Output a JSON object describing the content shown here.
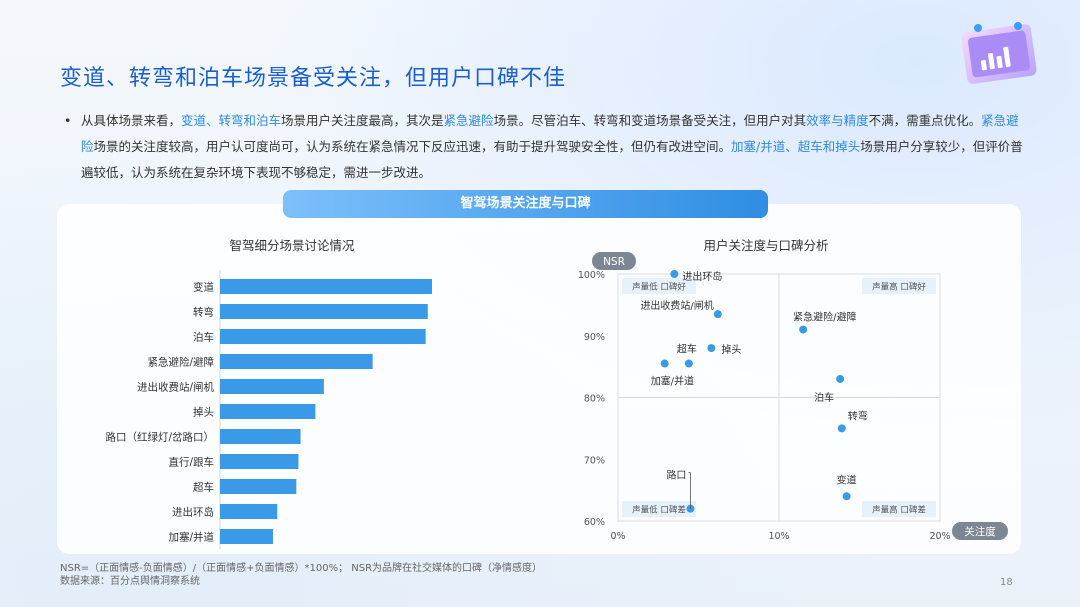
{
  "page": {
    "title": "变道、转弯和泊车场景备受关注，但用户口碑不佳",
    "panel_title": "智驾场景关注度与口碑",
    "footnote_1": "NSR=（正面情感-负面情感）/（正面情感+负面情感）*100%；  NSR为品牌在社交媒体的口碑（净情感度）",
    "footnote_2": "数据来源：百分点舆情洞察系统",
    "page_number": "18"
  },
  "bullet": {
    "p1": "从具体场景来看，",
    "h1": "变道、转弯和泊车",
    "p2": "场景用户关注度最高，其次是",
    "h2": "紧急避险",
    "p3": "场景。尽管泊车、转弯和变道场景备受关注，但用户对其",
    "h3": "效率与精度",
    "p4": "不满，需重点优化。",
    "h4": "紧急避险",
    "p5": "场景的关注度较高，用户认可度尚可，认为系统在紧急情况下反应迅速，有助于提升驾驶安全性，但仍有改进空间。",
    "h5": "加塞/并道、超车和掉头",
    "p6": "场景用户分享较少，但评价普遍较低，认为系统在复杂环境下表现不够稳定，需进一步改进。"
  },
  "colors": {
    "accent": "#2f8be3",
    "bar": "#3a9ae8",
    "title": "#1a5fd0"
  },
  "chart_data": [
    {
      "type": "bar",
      "orientation": "horizontal",
      "title": "智驾细分场景讨论情况",
      "categories": [
        "变道",
        "转弯",
        "泊车",
        "紧急避险/避障",
        "进出收费站/闸机",
        "掉头",
        "路口（红绿灯/岔路口）",
        "直行/跟车",
        "超车",
        "进出环岛",
        "加塞/并道"
      ],
      "values": [
        100,
        98,
        97,
        72,
        49,
        45,
        38,
        37,
        36,
        27,
        25
      ]
    },
    {
      "type": "scatter",
      "title": "用户关注度与口碑分析",
      "xlabel": "关注度",
      "ylabel": "NSR",
      "xlim": [
        0,
        20
      ],
      "ylim": [
        60,
        100
      ],
      "x_ticks": [
        "0%",
        "10%",
        "20%"
      ],
      "y_ticks": [
        "100%",
        "90%",
        "80%",
        "70%",
        "60%"
      ],
      "quadrants": {
        "top_left": "声量低 口碑好",
        "top_right": "声量高 口碑好",
        "bottom_left": "声量低 口碑差",
        "bottom_right": "声量高 口碑差"
      },
      "points": [
        {
          "label": "进出环岛",
          "x": 3.5,
          "y": 100
        },
        {
          "label": "进出收费站/闸机",
          "x": 6.2,
          "y": 93.5
        },
        {
          "label": "紧急避险/避障",
          "x": 11.5,
          "y": 91
        },
        {
          "label": "掉头",
          "x": 5.8,
          "y": 88
        },
        {
          "label": "超车",
          "x": 4.4,
          "y": 85.5
        },
        {
          "label": "加塞/并道",
          "x": 2.9,
          "y": 85.5
        },
        {
          "label": "泊车",
          "x": 13.8,
          "y": 83
        },
        {
          "label": "转弯",
          "x": 13.9,
          "y": 75
        },
        {
          "label": "路口",
          "x": 4.5,
          "y": 62
        },
        {
          "label": "变道",
          "x": 14.2,
          "y": 64
        }
      ]
    }
  ]
}
